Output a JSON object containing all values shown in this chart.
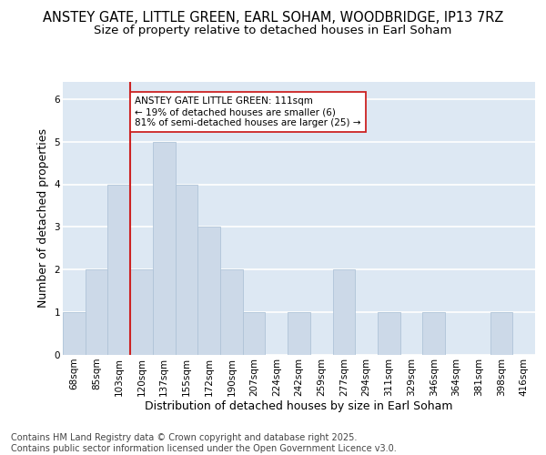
{
  "title_line1": "ANSTEY GATE, LITTLE GREEN, EARL SOHAM, WOODBRIDGE, IP13 7RZ",
  "title_line2": "Size of property relative to detached houses in Earl Soham",
  "xlabel": "Distribution of detached houses by size in Earl Soham",
  "ylabel": "Number of detached properties",
  "categories": [
    "68sqm",
    "85sqm",
    "103sqm",
    "120sqm",
    "137sqm",
    "155sqm",
    "172sqm",
    "190sqm",
    "207sqm",
    "224sqm",
    "242sqm",
    "259sqm",
    "277sqm",
    "294sqm",
    "311sqm",
    "329sqm",
    "346sqm",
    "364sqm",
    "381sqm",
    "398sqm",
    "416sqm"
  ],
  "values": [
    1,
    2,
    4,
    2,
    5,
    4,
    3,
    2,
    1,
    0,
    1,
    0,
    2,
    0,
    1,
    0,
    1,
    0,
    0,
    1,
    0
  ],
  "bar_color": "#ccd9e8",
  "bar_edge_color": "#b0c4d8",
  "vline_x_index": 2.5,
  "vline_color": "#cc2222",
  "annotation_text": "ANSTEY GATE LITTLE GREEN: 111sqm\n← 19% of detached houses are smaller (6)\n81% of semi-detached houses are larger (25) →",
  "annotation_box_color": "white",
  "annotation_box_edge": "#cc2222",
  "ylim": [
    0,
    6.4
  ],
  "yticks": [
    0,
    1,
    2,
    3,
    4,
    5,
    6
  ],
  "background_color": "#dde8f3",
  "grid_color": "white",
  "footer_text": "Contains HM Land Registry data © Crown copyright and database right 2025.\nContains public sector information licensed under the Open Government Licence v3.0.",
  "title_fontsize": 10.5,
  "subtitle_fontsize": 9.5,
  "axis_label_fontsize": 9,
  "tick_fontsize": 7.5,
  "annotation_fontsize": 7.5,
  "footer_fontsize": 7
}
